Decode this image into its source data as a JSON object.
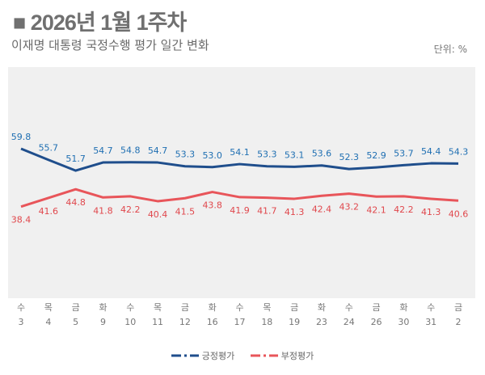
{
  "header": {
    "title": "■ 2026년 1월 1주차",
    "subtitle": "이재명 대통령 국정수행 평가 일간 변화",
    "unit": "단위: %"
  },
  "chart_data": {
    "type": "line",
    "categories": [
      [
        "수",
        "3"
      ],
      [
        "목",
        "4"
      ],
      [
        "금",
        "5"
      ],
      [
        "화",
        "9"
      ],
      [
        "수",
        "10"
      ],
      [
        "목",
        "11"
      ],
      [
        "금",
        "12"
      ],
      [
        "화",
        "16"
      ],
      [
        "수",
        "17"
      ],
      [
        "목",
        "18"
      ],
      [
        "금",
        "19"
      ],
      [
        "화",
        "23"
      ],
      [
        "수",
        "24"
      ],
      [
        "금",
        "26"
      ],
      [
        "화",
        "30"
      ],
      [
        "수",
        "31"
      ],
      [
        "금",
        "2"
      ]
    ],
    "series": [
      {
        "name": "긍정평가",
        "color": "#1f4e8c",
        "label_color": "#1f6fb2",
        "values": [
          59.8,
          55.7,
          51.7,
          54.7,
          54.8,
          54.7,
          53.3,
          53.0,
          54.1,
          53.3,
          53.1,
          53.6,
          52.3,
          52.9,
          53.7,
          54.4,
          54.3
        ]
      },
      {
        "name": "부정평가",
        "color": "#e8555a",
        "label_color": "#e0474c",
        "values": [
          38.4,
          41.6,
          44.8,
          41.8,
          42.2,
          40.4,
          41.5,
          43.8,
          41.9,
          41.7,
          41.3,
          42.4,
          43.2,
          42.1,
          42.2,
          41.3,
          40.6
        ]
      }
    ],
    "grid": false,
    "legend": "bottom"
  }
}
